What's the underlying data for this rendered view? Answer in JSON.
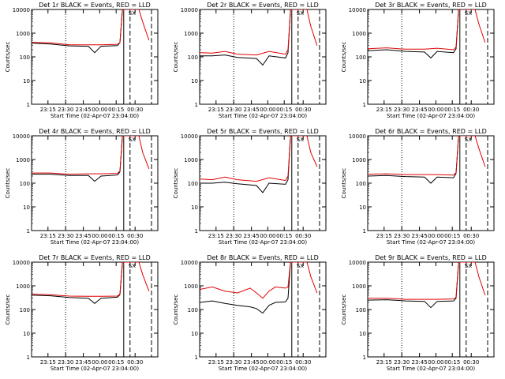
{
  "chart_data": [
    {
      "type": "line",
      "title": "Det 1r BLACK = Events, RED = LLD",
      "xlabel": "Start Time (02-Apr-07 23:04:00)",
      "ylabel": "Counts/sec",
      "yscale": "log",
      "ylim": [
        1,
        10000
      ],
      "xlim": [
        0,
        100
      ],
      "x_tick_labels": [
        "23:15",
        "23:30",
        "23:45",
        "00:00",
        "00:15",
        "00:30"
      ],
      "series": [
        {
          "name": "Events",
          "color": "#000000",
          "values": [
            [
              0,
              380
            ],
            [
              15,
              350
            ],
            [
              30,
              290
            ],
            [
              45,
              280
            ],
            [
              50,
              150
            ],
            [
              55,
              280
            ],
            [
              68,
              300
            ],
            [
              70,
              400
            ],
            [
              72,
              10000
            ]
          ]
        },
        {
          "name": "LLD",
          "color": "#e00000",
          "values": [
            [
              0,
              410
            ],
            [
              15,
              390
            ],
            [
              30,
              320
            ],
            [
              45,
              320
            ],
            [
              55,
              320
            ],
            [
              68,
              340
            ],
            [
              70,
              400
            ],
            [
              72,
              10000
            ],
            [
              85,
              10000
            ],
            [
              88,
              3000
            ],
            [
              93,
              500
            ]
          ]
        }
      ]
    },
    {
      "type": "line",
      "title": "Det 2r BLACK = Events, RED = LLD",
      "xlabel": "Start Time (02-Apr-07 23:04:00)",
      "ylabel": "Counts/sec",
      "yscale": "log",
      "ylim": [
        1,
        10000
      ],
      "xlim": [
        0,
        100
      ],
      "x_tick_labels": [
        "23:15",
        "23:30",
        "23:45",
        "00:00",
        "00:15",
        "00:30"
      ],
      "series": [
        {
          "name": "Events",
          "color": "#000000",
          "values": [
            [
              0,
              110
            ],
            [
              10,
              110
            ],
            [
              20,
              120
            ],
            [
              30,
              95
            ],
            [
              45,
              85
            ],
            [
              50,
              45
            ],
            [
              55,
              110
            ],
            [
              68,
              90
            ],
            [
              70,
              150
            ],
            [
              72,
              10000
            ]
          ]
        },
        {
          "name": "LLD",
          "color": "#e00000",
          "values": [
            [
              0,
              150
            ],
            [
              10,
              145
            ],
            [
              20,
              170
            ],
            [
              30,
              130
            ],
            [
              45,
              120
            ],
            [
              55,
              170
            ],
            [
              68,
              130
            ],
            [
              70,
              200
            ],
            [
              72,
              10000
            ],
            [
              85,
              10000
            ],
            [
              88,
              2000
            ],
            [
              93,
              300
            ]
          ]
        }
      ]
    },
    {
      "type": "line",
      "title": "Det 3r BLACK = Events, RED = LLD",
      "xlabel": "Start Time (02-Apr-07 23:04:00)",
      "ylabel": "Counts/sec",
      "yscale": "log",
      "ylim": [
        1,
        10000
      ],
      "xlim": [
        0,
        100
      ],
      "x_tick_labels": [
        "23:15",
        "23:30",
        "23:45",
        "00:00",
        "00:15",
        "00:30"
      ],
      "series": [
        {
          "name": "Events",
          "color": "#000000",
          "values": [
            [
              0,
              180
            ],
            [
              15,
              200
            ],
            [
              30,
              170
            ],
            [
              45,
              160
            ],
            [
              50,
              90
            ],
            [
              55,
              170
            ],
            [
              68,
              150
            ],
            [
              70,
              220
            ],
            [
              72,
              10000
            ]
          ]
        },
        {
          "name": "LLD",
          "color": "#e00000",
          "values": [
            [
              0,
              220
            ],
            [
              15,
              240
            ],
            [
              30,
              210
            ],
            [
              45,
              210
            ],
            [
              55,
              230
            ],
            [
              68,
              200
            ],
            [
              70,
              260
            ],
            [
              72,
              10000
            ],
            [
              85,
              10000
            ],
            [
              88,
              2500
            ],
            [
              93,
              400
            ]
          ]
        }
      ]
    },
    {
      "type": "line",
      "title": "Det 4r BLACK = Events, RED = LLD",
      "xlabel": "Start Time (02-Apr-07 23:04:00)",
      "ylabel": "Counts/sec",
      "yscale": "log",
      "ylim": [
        1,
        10000
      ],
      "xlim": [
        0,
        100
      ],
      "x_tick_labels": [
        "23:15",
        "23:30",
        "23:45",
        "00:00",
        "00:15",
        "00:30"
      ],
      "series": [
        {
          "name": "Events",
          "color": "#000000",
          "values": [
            [
              0,
              240
            ],
            [
              15,
              240
            ],
            [
              30,
              210
            ],
            [
              45,
              210
            ],
            [
              50,
              120
            ],
            [
              55,
              200
            ],
            [
              68,
              220
            ],
            [
              70,
              300
            ],
            [
              72,
              10000
            ]
          ]
        },
        {
          "name": "LLD",
          "color": "#e00000",
          "values": [
            [
              0,
              270
            ],
            [
              15,
              270
            ],
            [
              30,
              240
            ],
            [
              45,
              250
            ],
            [
              55,
              250
            ],
            [
              68,
              260
            ],
            [
              70,
              320
            ],
            [
              72,
              10000
            ],
            [
              85,
              10000
            ],
            [
              88,
              2000
            ],
            [
              93,
              400
            ]
          ]
        }
      ]
    },
    {
      "type": "line",
      "title": "Det 5r BLACK = Events, RED = LLD",
      "xlabel": "Start Time (02-Apr-07 23:04:00)",
      "ylabel": "Counts/sec",
      "yscale": "log",
      "ylim": [
        1,
        10000
      ],
      "xlim": [
        0,
        100
      ],
      "x_tick_labels": [
        "23:15",
        "23:30",
        "23:45",
        "00:00",
        "00:15",
        "00:30"
      ],
      "series": [
        {
          "name": "Events",
          "color": "#000000",
          "values": [
            [
              0,
              100
            ],
            [
              10,
              100
            ],
            [
              20,
              110
            ],
            [
              30,
              95
            ],
            [
              45,
              80
            ],
            [
              50,
              40
            ],
            [
              55,
              100
            ],
            [
              68,
              90
            ],
            [
              70,
              140
            ],
            [
              72,
              10000
            ]
          ]
        },
        {
          "name": "LLD",
          "color": "#e00000",
          "values": [
            [
              0,
              150
            ],
            [
              10,
              140
            ],
            [
              20,
              180
            ],
            [
              30,
              140
            ],
            [
              45,
              120
            ],
            [
              55,
              170
            ],
            [
              68,
              130
            ],
            [
              70,
              200
            ],
            [
              72,
              10000
            ],
            [
              85,
              10000
            ],
            [
              88,
              2000
            ],
            [
              93,
              500
            ]
          ]
        }
      ]
    },
    {
      "type": "line",
      "title": "Det 6r BLACK = Events, RED = LLD",
      "xlabel": "Start Time (02-Apr-07 23:04:00)",
      "ylabel": "Counts/sec",
      "yscale": "log",
      "ylim": [
        1,
        10000
      ],
      "xlim": [
        0,
        100
      ],
      "x_tick_labels": [
        "23:15",
        "23:30",
        "23:45",
        "00:00",
        "00:15",
        "00:30"
      ],
      "series": [
        {
          "name": "Events",
          "color": "#000000",
          "values": [
            [
              0,
              200
            ],
            [
              15,
              210
            ],
            [
              30,
              190
            ],
            [
              45,
              180
            ],
            [
              50,
              100
            ],
            [
              55,
              180
            ],
            [
              68,
              170
            ],
            [
              70,
              260
            ],
            [
              72,
              10000
            ]
          ]
        },
        {
          "name": "LLD",
          "color": "#e00000",
          "values": [
            [
              0,
              240
            ],
            [
              15,
              250
            ],
            [
              30,
              230
            ],
            [
              45,
              230
            ],
            [
              55,
              230
            ],
            [
              68,
              220
            ],
            [
              70,
              280
            ],
            [
              72,
              10000
            ],
            [
              85,
              10000
            ],
            [
              88,
              3000
            ],
            [
              93,
              500
            ]
          ]
        }
      ]
    },
    {
      "type": "line",
      "title": "Det 7r BLACK = Events, RED = LLD",
      "xlabel": "Start Time (02-Apr-07 23:04:00)",
      "ylabel": "Counts/sec",
      "yscale": "log",
      "ylim": [
        1,
        10000
      ],
      "xlim": [
        0,
        100
      ],
      "x_tick_labels": [
        "23:15",
        "23:30",
        "23:45",
        "00:00",
        "00:15",
        "00:30"
      ],
      "series": [
        {
          "name": "Events",
          "color": "#000000",
          "values": [
            [
              0,
              400
            ],
            [
              15,
              380
            ],
            [
              30,
              320
            ],
            [
              45,
              300
            ],
            [
              50,
              180
            ],
            [
              55,
              300
            ],
            [
              68,
              330
            ],
            [
              70,
              420
            ],
            [
              72,
              10000
            ]
          ]
        },
        {
          "name": "LLD",
          "color": "#e00000",
          "values": [
            [
              0,
              450
            ],
            [
              15,
              420
            ],
            [
              30,
              370
            ],
            [
              45,
              360
            ],
            [
              55,
              360
            ],
            [
              68,
              370
            ],
            [
              70,
              450
            ],
            [
              72,
              10000
            ],
            [
              85,
              10000
            ],
            [
              88,
              3000
            ],
            [
              93,
              600
            ]
          ]
        }
      ]
    },
    {
      "type": "line",
      "title": "Det 8r BLACK = Events, RED = LLD",
      "xlabel": "Start Time (02-Apr-07 23:04:00)",
      "ylabel": "Counts/sec",
      "yscale": "log",
      "ylim": [
        1,
        10000
      ],
      "xlim": [
        0,
        100
      ],
      "x_tick_labels": [
        "23:15",
        "23:30",
        "23:45",
        "00:00",
        "00:15",
        "00:30"
      ],
      "series": [
        {
          "name": "Events",
          "color": "#000000",
          "values": [
            [
              0,
              200
            ],
            [
              10,
              230
            ],
            [
              20,
              180
            ],
            [
              30,
              150
            ],
            [
              40,
              130
            ],
            [
              45,
              110
            ],
            [
              50,
              70
            ],
            [
              55,
              150
            ],
            [
              60,
              200
            ],
            [
              68,
              210
            ],
            [
              70,
              300
            ],
            [
              72,
              10000
            ]
          ]
        },
        {
          "name": "LLD",
          "color": "#e00000",
          "values": [
            [
              0,
              700
            ],
            [
              10,
              900
            ],
            [
              20,
              600
            ],
            [
              30,
              500
            ],
            [
              40,
              800
            ],
            [
              45,
              500
            ],
            [
              50,
              300
            ],
            [
              55,
              600
            ],
            [
              60,
              900
            ],
            [
              68,
              800
            ],
            [
              70,
              900
            ],
            [
              72,
              10000
            ],
            [
              85,
              10000
            ],
            [
              88,
              2500
            ],
            [
              93,
              500
            ]
          ]
        }
      ]
    },
    {
      "type": "line",
      "title": "Det 9r BLACK = Events, RED = LLD",
      "xlabel": "Start Time (02-Apr-07 23:04:00)",
      "ylabel": "Counts/sec",
      "yscale": "log",
      "ylim": [
        1,
        10000
      ],
      "xlim": [
        0,
        100
      ],
      "x_tick_labels": [
        "23:15",
        "23:30",
        "23:45",
        "00:00",
        "00:15",
        "00:30"
      ],
      "series": [
        {
          "name": "Events",
          "color": "#000000",
          "values": [
            [
              0,
              250
            ],
            [
              15,
              260
            ],
            [
              30,
              230
            ],
            [
              45,
              220
            ],
            [
              50,
              120
            ],
            [
              55,
              220
            ],
            [
              68,
              230
            ],
            [
              70,
              300
            ],
            [
              72,
              10000
            ]
          ]
        },
        {
          "name": "LLD",
          "color": "#e00000",
          "values": [
            [
              0,
              300
            ],
            [
              15,
              300
            ],
            [
              30,
              270
            ],
            [
              45,
              270
            ],
            [
              55,
              270
            ],
            [
              68,
              280
            ],
            [
              70,
              330
            ],
            [
              72,
              10000
            ],
            [
              85,
              10000
            ],
            [
              88,
              2500
            ],
            [
              93,
              400
            ]
          ]
        }
      ]
    }
  ]
}
